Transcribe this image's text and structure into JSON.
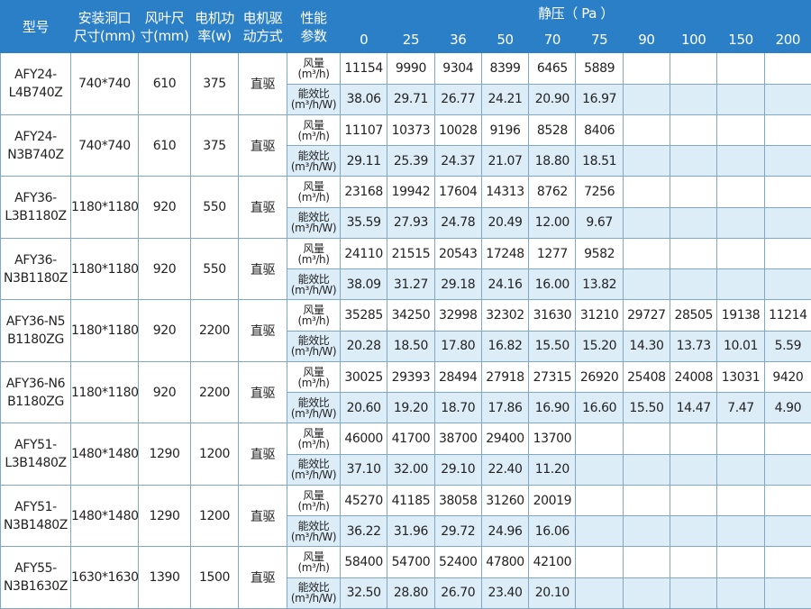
{
  "header": {
    "columns": [
      [
        "型号"
      ],
      [
        "安装洞口",
        "尺寸(mm)"
      ],
      [
        "风叶尺",
        "寸(mm)"
      ],
      [
        "电机功",
        "率(w)"
      ],
      [
        "电机驱",
        "动方式"
      ],
      [
        "性能",
        "参数"
      ]
    ],
    "pressure_title": "静压（ Pa ）",
    "pressures": [
      0,
      25,
      36,
      50,
      70,
      75,
      90,
      100,
      150,
      200
    ]
  },
  "param_labels": {
    "airflow": [
      "风量",
      "(m³/h)"
    ],
    "efficiency": [
      "能效比",
      "(m³/h/W)"
    ]
  },
  "models": [
    {
      "model": [
        "AFY24-",
        "L4B740Z"
      ],
      "opening": "740*740",
      "blade": "610",
      "power": "375",
      "drive": "直驱",
      "airflow": [
        "11154",
        "9990",
        "9304",
        "8399",
        "6465",
        "5889"
      ],
      "efficiency": [
        "38.06",
        "29.71",
        "26.77",
        "24.21",
        "20.90",
        "16.97"
      ]
    },
    {
      "model": [
        "AFY24-",
        "N3B740Z"
      ],
      "opening": "740*740",
      "blade": "610",
      "power": "375",
      "drive": "直驱",
      "airflow": [
        "11107",
        "10373",
        "10028",
        "9196",
        "8528",
        "8406"
      ],
      "efficiency": [
        "29.11",
        "25.39",
        "24.37",
        "21.07",
        "18.80",
        "18.51"
      ]
    },
    {
      "model": [
        "AFY36-",
        "L3B1180Z"
      ],
      "opening": "1180*1180",
      "blade": "920",
      "power": "550",
      "drive": "直驱",
      "airflow": [
        "23168",
        "19942",
        "17604",
        "14313",
        "8762",
        "7256"
      ],
      "efficiency": [
        "35.59",
        "27.93",
        "24.78",
        "20.49",
        "12.00",
        "9.67"
      ]
    },
    {
      "model": [
        "AFY36-",
        "N3B1180Z"
      ],
      "opening": "1180*1180",
      "blade": "920",
      "power": "550",
      "drive": "直驱",
      "airflow": [
        "24110",
        "21515",
        "20543",
        "17248",
        "1277",
        "9582"
      ],
      "efficiency": [
        "38.09",
        "31.27",
        "29.18",
        "24.16",
        "16.00",
        "13.82"
      ]
    },
    {
      "model": [
        "AFY36-N5",
        "B1180ZG"
      ],
      "opening": "1180*1180",
      "blade": "920",
      "power": "2200",
      "drive": "直驱",
      "airflow": [
        "35285",
        "34250",
        "32998",
        "32302",
        "31630",
        "31210",
        "29727",
        "28505",
        "19138",
        "11214"
      ],
      "efficiency": [
        "20.28",
        "18.50",
        "17.80",
        "16.82",
        "15.50",
        "15.20",
        "14.30",
        "13.73",
        "10.01",
        "5.59"
      ]
    },
    {
      "model": [
        "AFY36-N6",
        "B1180ZG"
      ],
      "opening": "1180*1180",
      "blade": "920",
      "power": "2200",
      "drive": "直驱",
      "airflow": [
        "30025",
        "29393",
        "28494",
        "27918",
        "27315",
        "26920",
        "25408",
        "24008",
        "13031",
        "9420"
      ],
      "efficiency": [
        "20.60",
        "19.20",
        "18.70",
        "17.86",
        "16.90",
        "16.60",
        "15.50",
        "14.47",
        "7.47",
        "4.90"
      ]
    },
    {
      "model": [
        "AFY51-",
        "L3B1480Z"
      ],
      "opening": "1480*1480",
      "blade": "1290",
      "power": "1200",
      "drive": "直驱",
      "airflow": [
        "46000",
        "41700",
        "38700",
        "29400",
        "13700"
      ],
      "efficiency": [
        "37.10",
        "32.00",
        "29.10",
        "22.40",
        "11.20"
      ]
    },
    {
      "model": [
        "AFY51-",
        "N3B1480Z"
      ],
      "opening": "1480*1480",
      "blade": "1290",
      "power": "1200",
      "drive": "直驱",
      "airflow": [
        "45270",
        "41185",
        "38058",
        "31260",
        "20019"
      ],
      "efficiency": [
        "36.22",
        "31.96",
        "29.72",
        "24.96",
        "16.06"
      ]
    },
    {
      "model": [
        "AFY55-",
        "N3B1630Z"
      ],
      "opening": "1630*1630",
      "blade": "1390",
      "power": "1500",
      "drive": "直驱",
      "airflow": [
        "58400",
        "54700",
        "52400",
        "47800",
        "42100"
      ],
      "efficiency": [
        "32.50",
        "28.80",
        "26.70",
        "23.40",
        "20.10"
      ]
    }
  ]
}
